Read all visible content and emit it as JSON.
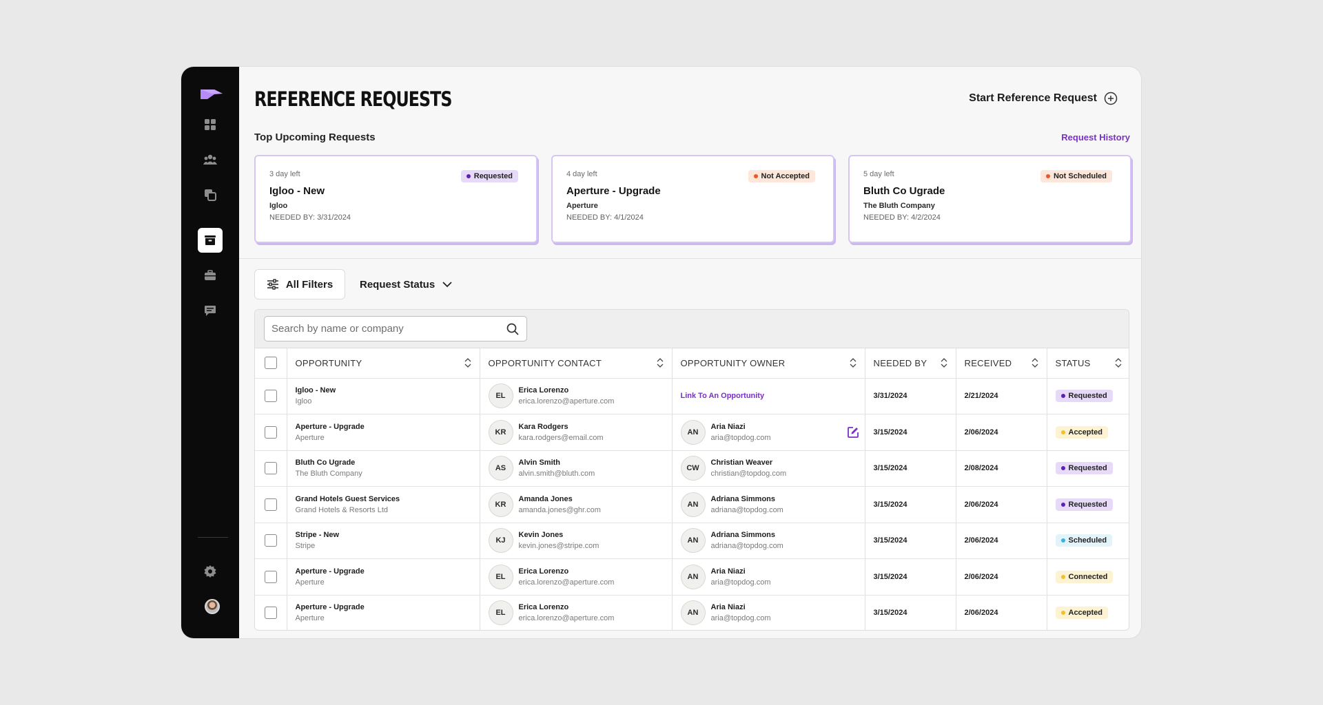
{
  "page": {
    "title": "REFERENCE REQUESTS",
    "start_request_label": "Start Reference Request",
    "section_label": "Top Upcoming Requests",
    "history_link": "Request History"
  },
  "sidebar": {
    "items": [
      {
        "name": "dashboard",
        "icon": "grid-icon",
        "active": false
      },
      {
        "name": "people",
        "icon": "people-icon",
        "active": false
      },
      {
        "name": "copy",
        "icon": "copy-icon",
        "active": false
      },
      {
        "name": "inbox",
        "icon": "inbox-icon",
        "active": true
      },
      {
        "name": "briefcase",
        "icon": "briefcase-icon",
        "active": false
      },
      {
        "name": "messages",
        "icon": "chat-icon",
        "active": false
      }
    ]
  },
  "cards": [
    {
      "days": "3 day left",
      "status": "Requested",
      "title": "Igloo - New",
      "company": "Igloo",
      "needed": "NEEDED BY: 3/31/2024"
    },
    {
      "days": "4 day left",
      "status": "Not Accepted",
      "title": "Aperture - Upgrade",
      "company": "Aperture",
      "needed": "NEEDED BY: 4/1/2024"
    },
    {
      "days": "5 day left",
      "status": "Not Scheduled",
      "title": "Bluth Co Ugrade",
      "company": "The Bluth Company",
      "needed": "NEEDED BY: 4/2/2024"
    }
  ],
  "filters": {
    "all_filters": "All Filters",
    "request_status": "Request Status"
  },
  "search": {
    "placeholder": "Search by name or company",
    "value": ""
  },
  "table": {
    "headers": {
      "opportunity": "OPPORTUNITY",
      "contact": "OPPORTUNITY CONTACT",
      "owner": "OPPORTUNITY OWNER",
      "needed_by": "NEEDED BY",
      "received": "RECEIVED",
      "status": "STATUS"
    },
    "rows": [
      {
        "opp": "Igloo - New",
        "opp_sub": "Igloo",
        "c_init": "EL",
        "c_name": "Erica Lorenzo",
        "c_email": "erica.lorenzo@aperture.com",
        "o_init": "",
        "o_name": "",
        "o_email": "",
        "o_link": "Link To An Opportunity",
        "needed": "3/31/2024",
        "received": "2/21/2024",
        "status": "Requested"
      },
      {
        "opp": "Aperture - Upgrade",
        "opp_sub": "Aperture",
        "c_init": "KR",
        "c_name": "Kara Rodgers",
        "c_email": "kara.rodgers@email.com",
        "o_init": "AN",
        "o_name": "Aria Niazi",
        "o_email": "aria@topdog.com",
        "o_link": "",
        "needed": "3/15/2024",
        "received": "2/06/2024",
        "status": "Accepted"
      },
      {
        "opp": "Bluth Co Ugrade",
        "opp_sub": "The Bluth Company",
        "c_init": "AS",
        "c_name": "Alvin Smith",
        "c_email": "alvin.smith@bluth.com",
        "o_init": "CW",
        "o_name": "Christian Weaver",
        "o_email": "christian@topdog.com",
        "o_link": "",
        "needed": "3/15/2024",
        "received": "2/08/2024",
        "status": "Requested"
      },
      {
        "opp": "Grand Hotels Guest Services",
        "opp_sub": "Grand Hotels & Resorts Ltd",
        "c_init": "KR",
        "c_name": "Amanda Jones",
        "c_email": "amanda.jones@ghr.com",
        "o_init": "AN",
        "o_name": "Adriana Simmons",
        "o_email": "adriana@topdog.com",
        "o_link": "",
        "needed": "3/15/2024",
        "received": "2/06/2024",
        "status": "Requested"
      },
      {
        "opp": "Stripe - New",
        "opp_sub": "Stripe",
        "c_init": "KJ",
        "c_name": "Kevin Jones",
        "c_email": "kevin.jones@stripe.com",
        "o_init": "AN",
        "o_name": "Adriana Simmons",
        "o_email": "adriana@topdog.com",
        "o_link": "",
        "needed": "3/15/2024",
        "received": "2/06/2024",
        "status": "Scheduled"
      },
      {
        "opp": "Aperture - Upgrade",
        "opp_sub": "Aperture",
        "c_init": "EL",
        "c_name": "Erica Lorenzo",
        "c_email": "erica.lorenzo@aperture.com",
        "o_init": "AN",
        "o_name": "Aria Niazi",
        "o_email": "aria@topdog.com",
        "o_link": "",
        "needed": "3/15/2024",
        "received": "2/06/2024",
        "status": "Connected"
      },
      {
        "opp": "Aperture - Upgrade",
        "opp_sub": "Aperture",
        "c_init": "EL",
        "c_name": "Erica Lorenzo",
        "c_email": "erica.lorenzo@aperture.com",
        "o_init": "AN",
        "o_name": "Aria Niazi",
        "o_email": "aria@topdog.com",
        "o_link": "",
        "needed": "3/15/2024",
        "received": "2/06/2024",
        "status": "Accepted"
      }
    ]
  },
  "colors": {
    "accent": "#7a2fc7",
    "sidebar_bg": "#0b0b0b",
    "logo": "#b58bf5"
  }
}
